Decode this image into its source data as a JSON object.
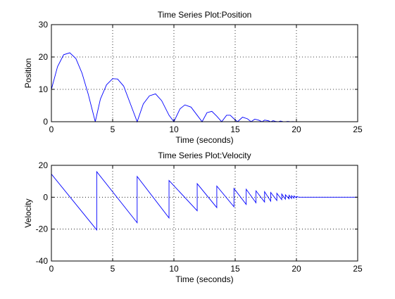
{
  "chart_data": [
    {
      "type": "line",
      "title": "Time Series Plot:Position",
      "xlabel": "Time (seconds)",
      "ylabel": "Position",
      "xlim": [
        0,
        25
      ],
      "ylim": [
        0,
        30
      ],
      "xticks": [
        0,
        5,
        10,
        15,
        20,
        25
      ],
      "yticks": [
        0,
        10,
        20,
        30
      ],
      "grid": true,
      "grid_style": "dotted",
      "line_color": "#0000ff",
      "series": [
        {
          "x": [
            0,
            0.5,
            1.0,
            1.5,
            2.0,
            2.5,
            3.0,
            3.58,
            4.0,
            4.5,
            5.0,
            5.4,
            5.9,
            6.5,
            7.0,
            7.5,
            8.0,
            8.5,
            9.0,
            9.6,
            10.0,
            10.5,
            10.9,
            11.4,
            11.9,
            12.3,
            12.7,
            13.1,
            13.5,
            13.9,
            14.3,
            14.6,
            14.9,
            15.2,
            15.6,
            16.0,
            16.3,
            16.6,
            16.9,
            17.2,
            17.4,
            17.7,
            17.9,
            18.1,
            18.3,
            18.5,
            18.7,
            18.9,
            19.1,
            19.3,
            19.5,
            19.7,
            19.9,
            20.1,
            20.5
          ],
          "y": [
            10,
            17.0,
            20.7,
            21.3,
            19.5,
            15.0,
            8.6,
            0,
            7.0,
            11.4,
            13.3,
            13.2,
            11.0,
            5.0,
            0,
            5.5,
            8.0,
            8.6,
            6.5,
            2.0,
            0,
            4.0,
            5.2,
            4.5,
            2.0,
            0,
            2.8,
            3.2,
            1.7,
            0,
            2.0,
            2.0,
            0.9,
            0,
            1.4,
            0.9,
            0,
            0.8,
            0.5,
            0,
            0.5,
            0.3,
            0,
            0.3,
            0.1,
            0,
            0.2,
            0.05,
            0,
            0.1,
            0,
            0.05,
            0,
            0,
            0
          ]
        }
      ]
    },
    {
      "type": "line",
      "title": "Time Series Plot:Velocity",
      "xlabel": "Time (seconds)",
      "ylabel": "Velocity",
      "xlim": [
        0,
        25
      ],
      "ylim": [
        -40,
        20
      ],
      "xticks": [
        0,
        5,
        10,
        15,
        20,
        25
      ],
      "yticks": [
        -40,
        -20,
        0,
        20
      ],
      "grid": true,
      "grid_style": "dotted",
      "line_color": "#0000ff",
      "series": [
        {
          "x": [
            0,
            3.7,
            3.7,
            7.0,
            7.0,
            9.6,
            9.6,
            11.9,
            11.9,
            13.5,
            13.5,
            14.9,
            14.9,
            15.9,
            15.9,
            16.7,
            16.7,
            17.4,
            17.4,
            17.9,
            17.9,
            18.4,
            18.4,
            18.8,
            18.8,
            19.1,
            19.1,
            19.4,
            19.4,
            19.6,
            19.6,
            19.8,
            19.8,
            20.0,
            20.0,
            20.2,
            20.4,
            25.0
          ],
          "y": [
            14.5,
            -20.5,
            16.0,
            -16.0,
            13.0,
            -13.0,
            10.5,
            -8.5,
            8.5,
            -6.5,
            7.0,
            -6.0,
            5.5,
            -4.5,
            5.0,
            -3.5,
            4.0,
            -3.0,
            3.5,
            -2.5,
            3.0,
            -2.0,
            2.5,
            -1.5,
            2.0,
            -1.2,
            1.5,
            -1.0,
            1.2,
            -0.8,
            1.0,
            -0.6,
            0.8,
            -0.4,
            0.5,
            0,
            0,
            0
          ]
        }
      ]
    }
  ]
}
